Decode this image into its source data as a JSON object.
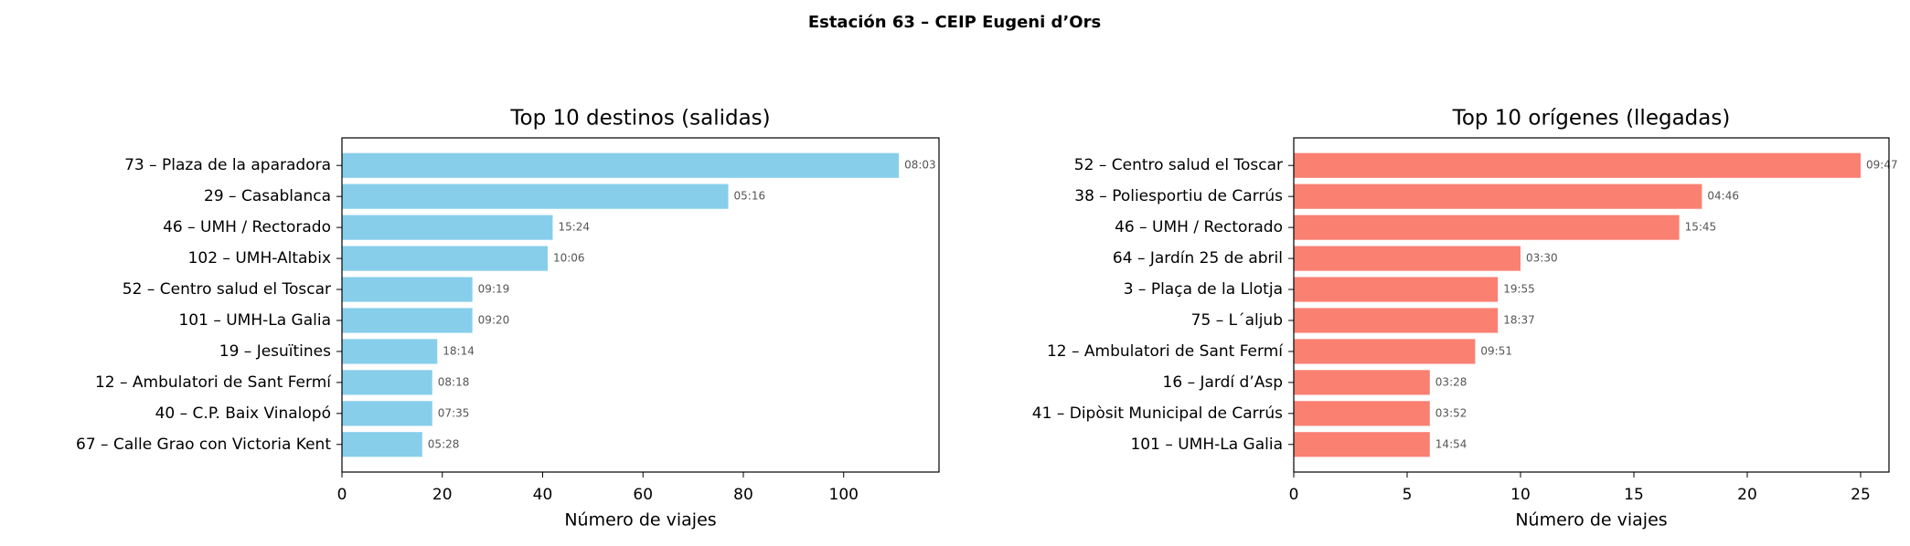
{
  "title": "Estación 63 – CEIP Eugeni d’Ors",
  "chart_data": [
    {
      "type": "barh",
      "title": "Top 10 destinos (salidas)",
      "x_label": "Número de viajes",
      "color": "#87ceeb",
      "categories": [
        "73 – Plaza de la aparadora",
        "29 – Casablanca",
        "46 – UMH / Rectorado",
        "102 – UMH-Altabix",
        "52 – Centro salud el Toscar",
        "101 – UMH-La Galia",
        "19 – Jesuïtines",
        "12 – Ambulatori de Sant Fermí",
        "40 – C.P. Baix Vinalopó",
        "67 – Calle Grao con Victoria Kent"
      ],
      "values": [
        111,
        77,
        42,
        41,
        26,
        26,
        19,
        18,
        18,
        16
      ],
      "annotations": [
        "08:03",
        "05:16",
        "15:24",
        "10:06",
        "09:19",
        "09:20",
        "18:14",
        "08:18",
        "07:35",
        "05:28"
      ],
      "xlim": [
        0,
        119
      ],
      "xticks": [
        0,
        20,
        40,
        60,
        80,
        100
      ]
    },
    {
      "type": "barh",
      "title": "Top 10 orígenes (llegadas)",
      "x_label": "Número de viajes",
      "color": "#fa8072",
      "categories": [
        "52 – Centro salud el Toscar",
        "38 – Poliesportiu de Carrús",
        "46 – UMH / Rectorado",
        "64 – Jardín 25 de abril",
        "3 – Plaça de la Llotja",
        "75 – L´aljub",
        "12 – Ambulatori de Sant Fermí",
        "16 – Jardí d’Asp",
        "41 – Dipòsit Municipal de Carrús",
        "101 – UMH-La Galia"
      ],
      "values": [
        25,
        18,
        17,
        10,
        9,
        9,
        8,
        6,
        6,
        6
      ],
      "annotations": [
        "09:47",
        "04:46",
        "15:45",
        "03:30",
        "19:55",
        "18:37",
        "09:51",
        "03:28",
        "03:52",
        "14:54"
      ],
      "xlim": [
        0,
        26.25
      ],
      "xticks": [
        0,
        5,
        10,
        15,
        20,
        25
      ]
    }
  ]
}
